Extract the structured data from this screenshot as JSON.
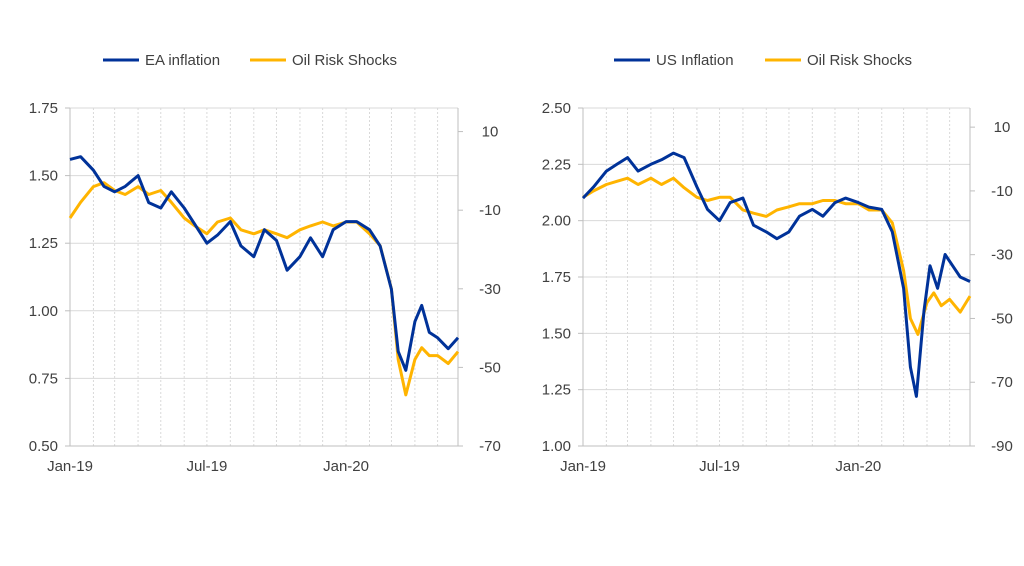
{
  "colors": {
    "series_a": "#003299",
    "series_b": "#FFB400",
    "grid": "#d9d9d9",
    "axis": "#bfbfbf",
    "text": "#404040"
  },
  "chart_data": [
    {
      "type": "line",
      "title": "",
      "legend_placement": "top",
      "grid": true,
      "x_ticks": [
        "Jan-19",
        "Jul-19",
        "Jan-20"
      ],
      "x_range": [
        "2019-01-01",
        "2020-05-28"
      ],
      "y_left": {
        "lim": [
          0.5,
          1.75
        ],
        "ticks": [
          "0.50",
          "0.75",
          "1.00",
          "1.25",
          "1.50",
          "1.75"
        ]
      },
      "y_right": {
        "lim": [
          -70,
          16
        ],
        "ticks": [
          "-70",
          "-50",
          "-30",
          "-10",
          "10"
        ]
      },
      "series": [
        {
          "name": "EA inflation",
          "axis": "left",
          "color": "#003299",
          "points": [
            [
              "2019-01-01",
              1.56
            ],
            [
              "2019-01-15",
              1.57
            ],
            [
              "2019-02-01",
              1.52
            ],
            [
              "2019-02-15",
              1.46
            ],
            [
              "2019-03-01",
              1.44
            ],
            [
              "2019-03-15",
              1.46
            ],
            [
              "2019-04-01",
              1.5
            ],
            [
              "2019-04-15",
              1.4
            ],
            [
              "2019-05-01",
              1.38
            ],
            [
              "2019-05-15",
              1.44
            ],
            [
              "2019-06-01",
              1.38
            ],
            [
              "2019-06-15",
              1.32
            ],
            [
              "2019-07-01",
              1.25
            ],
            [
              "2019-07-15",
              1.28
            ],
            [
              "2019-08-01",
              1.33
            ],
            [
              "2019-08-15",
              1.24
            ],
            [
              "2019-09-01",
              1.2
            ],
            [
              "2019-09-15",
              1.3
            ],
            [
              "2019-10-01",
              1.26
            ],
            [
              "2019-10-15",
              1.15
            ],
            [
              "2019-11-01",
              1.2
            ],
            [
              "2019-11-15",
              1.27
            ],
            [
              "2019-12-01",
              1.2
            ],
            [
              "2019-12-15",
              1.3
            ],
            [
              "2020-01-01",
              1.33
            ],
            [
              "2020-01-15",
              1.33
            ],
            [
              "2020-02-01",
              1.3
            ],
            [
              "2020-02-15",
              1.24
            ],
            [
              "2020-03-01",
              1.08
            ],
            [
              "2020-03-10",
              0.85
            ],
            [
              "2020-03-20",
              0.78
            ],
            [
              "2020-04-01",
              0.96
            ],
            [
              "2020-04-10",
              1.02
            ],
            [
              "2020-04-20",
              0.92
            ],
            [
              "2020-05-01",
              0.9
            ],
            [
              "2020-05-15",
              0.86
            ],
            [
              "2020-05-28",
              0.9
            ]
          ]
        },
        {
          "name": "Oil Risk Shocks",
          "axis": "right",
          "color": "#FFB400",
          "points": [
            [
              "2019-01-01",
              -12
            ],
            [
              "2019-01-15",
              -8
            ],
            [
              "2019-02-01",
              -4
            ],
            [
              "2019-02-15",
              -3
            ],
            [
              "2019-03-01",
              -5
            ],
            [
              "2019-03-15",
              -6
            ],
            [
              "2019-04-01",
              -4
            ],
            [
              "2019-04-15",
              -6
            ],
            [
              "2019-05-01",
              -5
            ],
            [
              "2019-05-15",
              -8
            ],
            [
              "2019-06-01",
              -12
            ],
            [
              "2019-06-15",
              -14
            ],
            [
              "2019-07-01",
              -16
            ],
            [
              "2019-07-15",
              -13
            ],
            [
              "2019-08-01",
              -12
            ],
            [
              "2019-08-15",
              -15
            ],
            [
              "2019-09-01",
              -16
            ],
            [
              "2019-09-15",
              -15
            ],
            [
              "2019-10-01",
              -16
            ],
            [
              "2019-10-15",
              -17
            ],
            [
              "2019-11-01",
              -15
            ],
            [
              "2019-11-15",
              -14
            ],
            [
              "2019-12-01",
              -13
            ],
            [
              "2019-12-15",
              -14
            ],
            [
              "2020-01-01",
              -13
            ],
            [
              "2020-01-15",
              -13
            ],
            [
              "2020-02-01",
              -16
            ],
            [
              "2020-02-15",
              -19
            ],
            [
              "2020-03-01",
              -30
            ],
            [
              "2020-03-10",
              -48
            ],
            [
              "2020-03-20",
              -57
            ],
            [
              "2020-04-01",
              -48
            ],
            [
              "2020-04-10",
              -45
            ],
            [
              "2020-04-20",
              -47
            ],
            [
              "2020-05-01",
              -47
            ],
            [
              "2020-05-15",
              -49
            ],
            [
              "2020-05-28",
              -46
            ]
          ]
        }
      ]
    },
    {
      "type": "line",
      "title": "",
      "legend_placement": "top",
      "grid": true,
      "x_ticks": [
        "Jan-19",
        "Jul-19",
        "Jan-20"
      ],
      "x_range": [
        "2019-01-01",
        "2020-05-28"
      ],
      "y_left": {
        "lim": [
          1.0,
          2.5
        ],
        "ticks": [
          "1.00",
          "1.25",
          "1.50",
          "1.75",
          "2.00",
          "2.25",
          "2.50"
        ]
      },
      "y_right": {
        "lim": [
          -90,
          16
        ],
        "ticks": [
          "-90",
          "-70",
          "-50",
          "-30",
          "-10",
          "10"
        ]
      },
      "series": [
        {
          "name": "US Inflation",
          "axis": "left",
          "color": "#003299",
          "points": [
            [
              "2019-01-01",
              2.1
            ],
            [
              "2019-01-15",
              2.15
            ],
            [
              "2019-02-01",
              2.22
            ],
            [
              "2019-02-15",
              2.25
            ],
            [
              "2019-03-01",
              2.28
            ],
            [
              "2019-03-15",
              2.22
            ],
            [
              "2019-04-01",
              2.25
            ],
            [
              "2019-04-15",
              2.27
            ],
            [
              "2019-05-01",
              2.3
            ],
            [
              "2019-05-15",
              2.28
            ],
            [
              "2019-06-01",
              2.15
            ],
            [
              "2019-06-15",
              2.05
            ],
            [
              "2019-07-01",
              2.0
            ],
            [
              "2019-07-15",
              2.08
            ],
            [
              "2019-08-01",
              2.1
            ],
            [
              "2019-08-15",
              1.98
            ],
            [
              "2019-09-01",
              1.95
            ],
            [
              "2019-09-15",
              1.92
            ],
            [
              "2019-10-01",
              1.95
            ],
            [
              "2019-10-15",
              2.02
            ],
            [
              "2019-11-01",
              2.05
            ],
            [
              "2019-11-15",
              2.02
            ],
            [
              "2019-12-01",
              2.08
            ],
            [
              "2019-12-15",
              2.1
            ],
            [
              "2020-01-01",
              2.08
            ],
            [
              "2020-01-15",
              2.06
            ],
            [
              "2020-02-01",
              2.05
            ],
            [
              "2020-02-15",
              1.95
            ],
            [
              "2020-03-01",
              1.7
            ],
            [
              "2020-03-10",
              1.35
            ],
            [
              "2020-03-18",
              1.22
            ],
            [
              "2020-03-28",
              1.6
            ],
            [
              "2020-04-05",
              1.8
            ],
            [
              "2020-04-15",
              1.7
            ],
            [
              "2020-04-25",
              1.85
            ],
            [
              "2020-05-05",
              1.8
            ],
            [
              "2020-05-15",
              1.75
            ],
            [
              "2020-05-28",
              1.73
            ]
          ]
        },
        {
          "name": "Oil Risk Shocks",
          "axis": "right",
          "color": "#FFB400",
          "points": [
            [
              "2019-01-01",
              -12
            ],
            [
              "2019-01-15",
              -10
            ],
            [
              "2019-02-01",
              -8
            ],
            [
              "2019-02-15",
              -7
            ],
            [
              "2019-03-01",
              -6
            ],
            [
              "2019-03-15",
              -8
            ],
            [
              "2019-04-01",
              -6
            ],
            [
              "2019-04-15",
              -8
            ],
            [
              "2019-05-01",
              -6
            ],
            [
              "2019-05-15",
              -9
            ],
            [
              "2019-06-01",
              -12
            ],
            [
              "2019-06-15",
              -13
            ],
            [
              "2019-07-01",
              -12
            ],
            [
              "2019-07-15",
              -12
            ],
            [
              "2019-08-01",
              -16
            ],
            [
              "2019-08-15",
              -17
            ],
            [
              "2019-09-01",
              -18
            ],
            [
              "2019-09-15",
              -16
            ],
            [
              "2019-10-01",
              -15
            ],
            [
              "2019-10-15",
              -14
            ],
            [
              "2019-11-01",
              -14
            ],
            [
              "2019-11-15",
              -13
            ],
            [
              "2019-12-01",
              -13
            ],
            [
              "2019-12-15",
              -14
            ],
            [
              "2020-01-01",
              -14
            ],
            [
              "2020-01-15",
              -16
            ],
            [
              "2020-02-01",
              -16
            ],
            [
              "2020-02-15",
              -20
            ],
            [
              "2020-03-01",
              -35
            ],
            [
              "2020-03-10",
              -50
            ],
            [
              "2020-03-20",
              -55
            ],
            [
              "2020-04-01",
              -45
            ],
            [
              "2020-04-10",
              -42
            ],
            [
              "2020-04-20",
              -46
            ],
            [
              "2020-05-01",
              -44
            ],
            [
              "2020-05-15",
              -48
            ],
            [
              "2020-05-28",
              -43
            ]
          ]
        }
      ]
    }
  ]
}
